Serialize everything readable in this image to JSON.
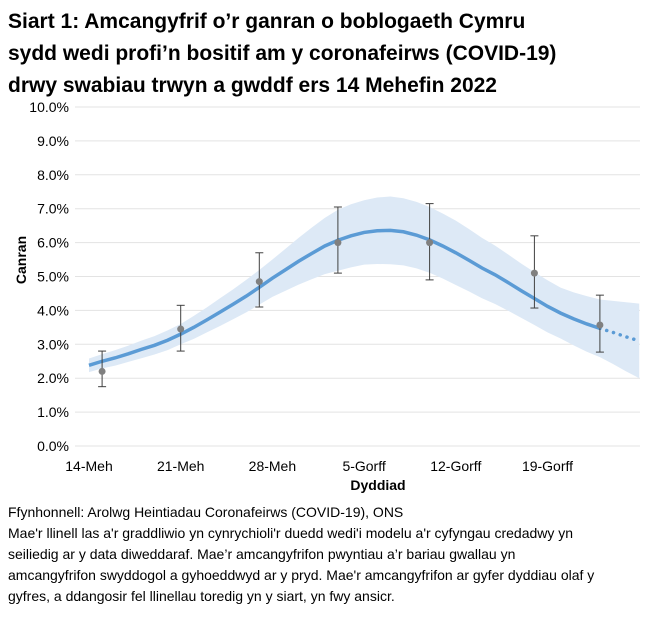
{
  "chart_data": {
    "type": "line",
    "title": [
      "Siart 1: Amcangyfrif o’r ganran o boblogaeth Cymru",
      "sydd wedi profi’n bositif am y coronafeirws (COVID-19)",
      "drwy swabiau trwyn a gwddf ers 14 Mehefin 2022"
    ],
    "y_label": "Canran",
    "x_label": "Dyddiad",
    "categories": [
      "14-Meh",
      null,
      null,
      null,
      null,
      null,
      null,
      "21-Meh",
      null,
      null,
      null,
      null,
      null,
      null,
      "28-Meh",
      null,
      null,
      null,
      null,
      null,
      null,
      "5-Gorff",
      null,
      null,
      null,
      null,
      null,
      null,
      "12-Gorff",
      null,
      null,
      null,
      null,
      null,
      null,
      "19-Gorff",
      null,
      null,
      null,
      null,
      null,
      null,
      null
    ],
    "ylim": [
      0,
      10
    ],
    "yticks": [
      {
        "value": 0,
        "label": "0.0%"
      },
      {
        "value": 1,
        "label": "1.0%"
      },
      {
        "value": 2,
        "label": "2.0%"
      },
      {
        "value": 3,
        "label": "3.0%"
      },
      {
        "value": 4,
        "label": "4.0%"
      },
      {
        "value": 5,
        "label": "5.0%"
      },
      {
        "value": 6,
        "label": "6.0%"
      },
      {
        "value": 7,
        "label": "7.0%"
      },
      {
        "value": 8,
        "label": "8.0%"
      },
      {
        "value": 9,
        "label": "9.0%"
      },
      {
        "value": 10,
        "label": "10.0%"
      }
    ],
    "grid": true,
    "band": {
      "color": "#dde9f6",
      "lower": [
        2.18,
        2.29,
        2.37,
        2.48,
        2.59,
        2.7,
        2.83,
        3.0,
        3.16,
        3.35,
        3.54,
        3.74,
        3.94,
        4.17,
        4.4,
        4.58,
        4.76,
        4.92,
        5.07,
        5.17,
        5.27,
        5.35,
        5.37,
        5.36,
        5.33,
        5.24,
        5.11,
        4.94,
        4.75,
        4.56,
        4.36,
        4.19,
        3.99,
        3.78,
        3.57,
        3.35,
        3.17,
        2.97,
        2.78,
        2.62,
        2.42,
        2.2,
        2.0
      ],
      "upper": [
        2.58,
        2.71,
        2.83,
        2.96,
        3.11,
        3.24,
        3.41,
        3.6,
        3.84,
        4.09,
        4.36,
        4.62,
        4.9,
        5.19,
        5.5,
        5.82,
        6.14,
        6.44,
        6.73,
        6.97,
        7.13,
        7.25,
        7.33,
        7.36,
        7.31,
        7.2,
        7.05,
        6.86,
        6.65,
        6.4,
        6.14,
        5.91,
        5.65,
        5.38,
        5.13,
        4.89,
        4.67,
        4.53,
        4.42,
        4.32,
        4.28,
        4.24,
        4.2
      ]
    },
    "series": [
      {
        "color": "#5b9bd5",
        "style": "solid",
        "values": [
          2.38,
          2.5,
          2.6,
          2.72,
          2.85,
          2.97,
          3.12,
          3.3,
          3.5,
          3.72,
          3.95,
          4.18,
          4.42,
          4.68,
          4.95,
          5.2,
          5.45,
          5.68,
          5.9,
          6.07,
          6.2,
          6.3,
          6.35,
          6.36,
          6.32,
          6.22,
          6.08,
          5.9,
          5.7,
          5.48,
          5.25,
          5.05,
          4.82,
          4.58,
          4.35,
          4.12,
          3.92,
          3.75,
          3.6,
          3.47,
          null,
          null,
          null
        ]
      },
      {
        "color": "#5b9bd5",
        "style": "dotted",
        "values": [
          null,
          null,
          null,
          null,
          null,
          null,
          null,
          null,
          null,
          null,
          null,
          null,
          null,
          null,
          null,
          null,
          null,
          null,
          null,
          null,
          null,
          null,
          null,
          null,
          null,
          null,
          null,
          null,
          null,
          null,
          null,
          null,
          null,
          null,
          null,
          null,
          null,
          null,
          null,
          3.47,
          3.35,
          3.22,
          3.1
        ]
      }
    ],
    "estimates": {
      "color": "#808080",
      "values": [
        null,
        2.2,
        null,
        null,
        null,
        null,
        null,
        3.45,
        null,
        null,
        null,
        null,
        null,
        4.85,
        null,
        null,
        null,
        null,
        null,
        6.0,
        null,
        null,
        null,
        null,
        null,
        null,
        6.0,
        null,
        null,
        null,
        null,
        null,
        null,
        null,
        5.1,
        null,
        null,
        null,
        null,
        3.57,
        null,
        null,
        null
      ],
      "lower": [
        null,
        1.75,
        null,
        null,
        null,
        null,
        null,
        2.8,
        null,
        null,
        null,
        null,
        null,
        4.1,
        null,
        null,
        null,
        null,
        null,
        5.1,
        null,
        null,
        null,
        null,
        null,
        null,
        4.9,
        null,
        null,
        null,
        null,
        null,
        null,
        null,
        4.07,
        null,
        null,
        null,
        null,
        2.77,
        null,
        null,
        null
      ],
      "upper": [
        null,
        2.8,
        null,
        null,
        null,
        null,
        null,
        4.15,
        null,
        null,
        null,
        null,
        null,
        5.7,
        null,
        null,
        null,
        null,
        null,
        7.05,
        null,
        null,
        null,
        null,
        null,
        null,
        7.15,
        null,
        null,
        null,
        null,
        null,
        null,
        null,
        6.2,
        null,
        null,
        null,
        null,
        4.45,
        null,
        null,
        null
      ]
    },
    "source": "Ffynhonnell: Arolwg Heintiadau Coronafeirws (COVID-19), ONS",
    "notes": [
      "Mae'r llinell las a'r graddliwio yn cynrychioli'r duedd wedi'i modelu a'r cyfyngau credadwy yn",
      "seiliedig ar y data diweddaraf. Mae’r amcangyfrifon pwyntiau a’r bariau gwallau yn",
      "amcangyfrifon swyddogol a gyhoeddwyd ar y pryd. Mae'r amcangyfrifon ar gyfer dyddiau olaf y",
      "gyfres, a ddangosir fel llinellau toredig yn y siart, yn fwy ansicr."
    ]
  }
}
